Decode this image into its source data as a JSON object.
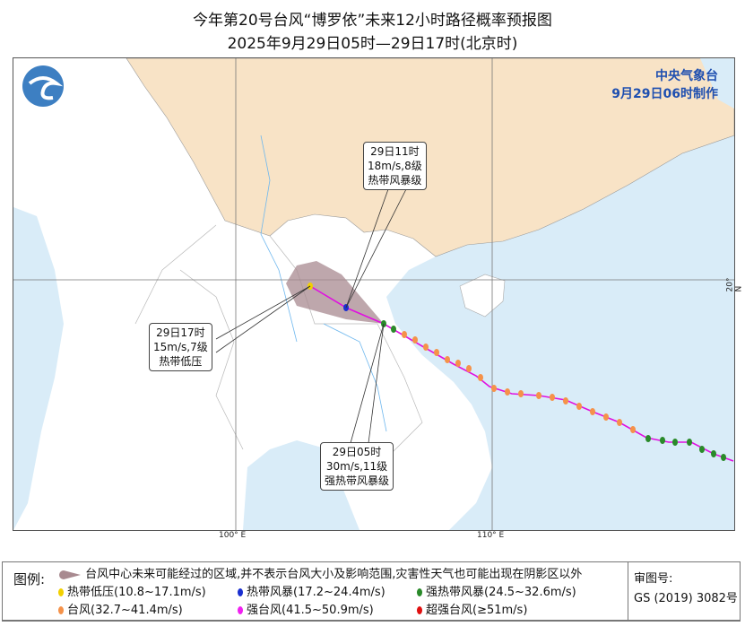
{
  "title": "今年第20号台风“博罗依”未来12小时路径概率预报图",
  "subtitle": "2025年9月29日05时—29日17时(北京时)",
  "agency": {
    "name": "中央气象台",
    "issued": "9月29日06时制作"
  },
  "axes": {
    "lon_100": "100° E",
    "lon_110": "110° E",
    "lat_20": "20° N"
  },
  "callouts": [
    {
      "time": "29日11时",
      "wind": "18m/s,8级",
      "grade": "热带风暴级"
    },
    {
      "time": "29日17时",
      "wind": "15m/s,7级",
      "grade": "热带低压"
    },
    {
      "time": "29日05时",
      "wind": "30m/s,11级",
      "grade": "强热带风暴级"
    }
  ],
  "legend": {
    "label": "图例:",
    "cone": "台风中心未来可能经过的区域,并不表示台风大小及影响范围,灾害性天气也可能出现在阴影区以外",
    "items": [
      {
        "text": "热带低压(10.8~17.1m/s)",
        "color": "#f2d000"
      },
      {
        "text": "热带风暴(17.2~24.4m/s)",
        "color": "#1a2fd0"
      },
      {
        "text": "强热带风暴(24.5~32.6m/s)",
        "color": "#2a8a2a"
      },
      {
        "text": "台风(32.7~41.4m/s)",
        "color": "#f5924a"
      },
      {
        "text": "强台风(41.5~50.9m/s)",
        "color": "#f020f0"
      },
      {
        "text": "超强台风(≥51m/s)",
        "color": "#e01010"
      }
    ]
  },
  "review": {
    "label": "审图号:",
    "number": "GS (2019) 3082号"
  },
  "colors": {
    "sea": "#d9ecf8",
    "china": "#f8e3c6",
    "land": "#ffffff",
    "cone": "#a88a90",
    "track": "#e010e0"
  }
}
